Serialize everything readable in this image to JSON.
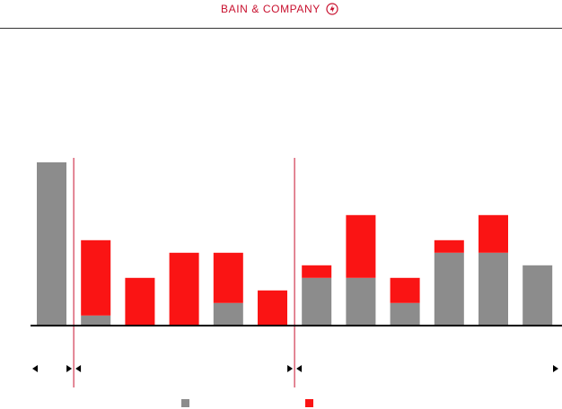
{
  "header": {
    "logo_text": "BAIN & COMPANY",
    "logo_icon": "bain-compass-icon"
  },
  "colors": {
    "gray": "#8c8c8c",
    "red": "#fa1414",
    "brand": "#c8102e",
    "axis": "#000000",
    "divider": "#c8102e"
  },
  "chart_data": {
    "type": "bar",
    "stacked": true,
    "title": "",
    "xlabel": "",
    "ylabel": "",
    "categories": [
      "",
      "",
      "",
      "",
      "",
      "",
      "",
      "",
      "",
      "",
      "",
      ""
    ],
    "ylim": [
      0,
      14
    ],
    "grid": false,
    "dividers_after": [
      0,
      5
    ],
    "groups": [
      {
        "from": 0,
        "to": 0
      },
      {
        "from": 1,
        "to": 5
      },
      {
        "from": 6,
        "to": 11
      }
    ],
    "series": [
      {
        "color_key": "gray",
        "values": [
          13,
          0.8,
          0,
          0,
          1.8,
          0,
          3.8,
          3.8,
          1.8,
          5.8,
          5.8,
          4.8
        ]
      },
      {
        "color_key": "red",
        "values": [
          0,
          6,
          3.8,
          5.8,
          4,
          2.8,
          1,
          5,
          2,
          1,
          3,
          0
        ]
      }
    ],
    "legend": {
      "placement": "bottom-center",
      "entries": [
        {
          "label": "",
          "color_key": "gray"
        },
        {
          "label": "",
          "color_key": "red"
        }
      ]
    }
  }
}
